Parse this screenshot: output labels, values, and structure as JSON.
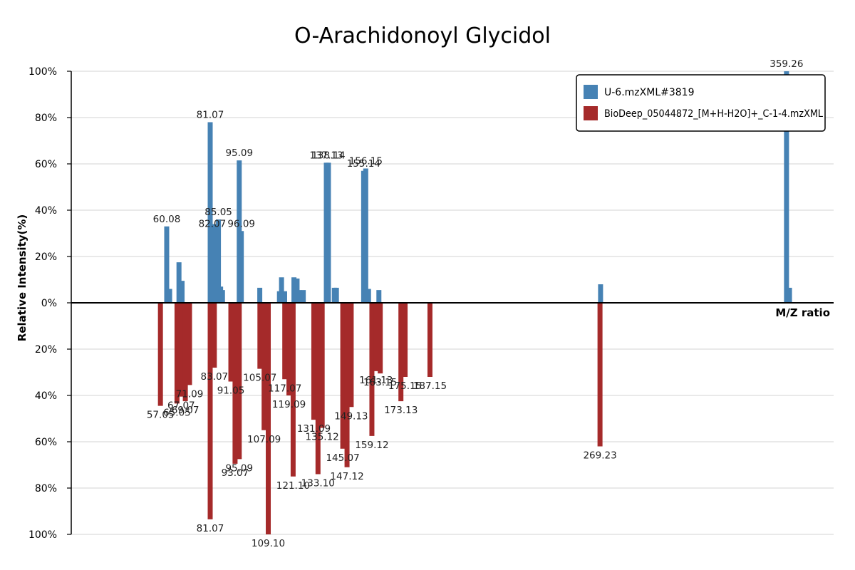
{
  "chart_data": {
    "type": "bar",
    "title": "O-Arachidonoyl Glycidol",
    "xlabel": "M/Z ratio",
    "ylabel": "Relative Intensity(%)",
    "ylim": [
      -100,
      100
    ],
    "xlim": [
      14,
      382
    ],
    "grid": true,
    "legend_position": "top-right",
    "y_ticks": [
      "100%",
      "80%",
      "60%",
      "40%",
      "20%",
      "0%",
      "20%",
      "40%",
      "60%",
      "80%",
      "100%"
    ],
    "colors": {
      "query": "#4682b4",
      "reference": "#a52a2a"
    },
    "series": [
      {
        "name": "U-6.mzXML#3819",
        "color": "#4682b4",
        "direction": "up",
        "peaks": [
          {
            "mz": 60.08,
            "intensity": 33,
            "label": "60.08"
          },
          {
            "mz": 61.5,
            "intensity": 6
          },
          {
            "mz": 66.0,
            "intensity": 17.5
          },
          {
            "mz": 67.5,
            "intensity": 9.5
          },
          {
            "mz": 81.07,
            "intensity": 78,
            "label": "81.07"
          },
          {
            "mz": 82.07,
            "intensity": 31,
            "label": "82.07"
          },
          {
            "mz": 83.2,
            "intensity": 34
          },
          {
            "mz": 84.2,
            "intensity": 18
          },
          {
            "mz": 85.05,
            "intensity": 36,
            "label": "85.05"
          },
          {
            "mz": 86.1,
            "intensity": 7
          },
          {
            "mz": 87.0,
            "intensity": 5.5
          },
          {
            "mz": 95.09,
            "intensity": 61.5,
            "label": "95.09"
          },
          {
            "mz": 96.09,
            "intensity": 31,
            "label": "96.09"
          },
          {
            "mz": 105.0,
            "intensity": 6.5
          },
          {
            "mz": 114.5,
            "intensity": 5
          },
          {
            "mz": 115.5,
            "intensity": 11
          },
          {
            "mz": 117.0,
            "intensity": 5
          },
          {
            "mz": 121.5,
            "intensity": 11
          },
          {
            "mz": 123.0,
            "intensity": 10.5
          },
          {
            "mz": 124.0,
            "intensity": 5.5
          },
          {
            "mz": 126.0,
            "intensity": 5.5
          },
          {
            "mz": 137.13,
            "intensity": 60.5,
            "label": "137.13"
          },
          {
            "mz": 138.14,
            "intensity": 60.5,
            "label": "138.14"
          },
          {
            "mz": 141.0,
            "intensity": 6.5
          },
          {
            "mz": 142.0,
            "intensity": 6.5
          },
          {
            "mz": 155.14,
            "intensity": 57,
            "label": "155.14"
          },
          {
            "mz": 156.15,
            "intensity": 58,
            "label": "156.15"
          },
          {
            "mz": 157.5,
            "intensity": 6
          },
          {
            "mz": 162.5,
            "intensity": 5.5
          },
          {
            "mz": 269.5,
            "intensity": 8
          },
          {
            "mz": 359.26,
            "intensity": 100,
            "label": "359.26"
          },
          {
            "mz": 360.7,
            "intensity": 6.5
          }
        ]
      },
      {
        "name": "BioDeep_05044872_[M+H-H2O]+_C-1-4.mzXML",
        "color": "#a52a2a",
        "direction": "down",
        "peaks": [
          {
            "mz": 57.05,
            "intensity": 44.5,
            "label": "57.05"
          },
          {
            "mz": 65.05,
            "intensity": 43.5,
            "label": "65.05"
          },
          {
            "mz": 67.07,
            "intensity": 40.5,
            "label": "67.07"
          },
          {
            "mz": 69.07,
            "intensity": 42.5,
            "label": "69.07"
          },
          {
            "mz": 71.09,
            "intensity": 35.5,
            "label": "71.09"
          },
          {
            "mz": 81.07,
            "intensity": 93.5,
            "label": "81.07"
          },
          {
            "mz": 83.07,
            "intensity": 28,
            "label": "83.07"
          },
          {
            "mz": 91.05,
            "intensity": 34,
            "label": "91.05"
          },
          {
            "mz": 93.07,
            "intensity": 69.5,
            "label": "93.07"
          },
          {
            "mz": 95.09,
            "intensity": 67.5,
            "label": "95.09"
          },
          {
            "mz": 105.07,
            "intensity": 28.5,
            "label": "105.07"
          },
          {
            "mz": 107.09,
            "intensity": 55,
            "label": "107.09"
          },
          {
            "mz": 109.1,
            "intensity": 100,
            "label": "109.10"
          },
          {
            "mz": 117.07,
            "intensity": 33,
            "label": "117.07"
          },
          {
            "mz": 119.09,
            "intensity": 40,
            "label": "119.09"
          },
          {
            "mz": 121.1,
            "intensity": 75,
            "label": "121.10"
          },
          {
            "mz": 131.09,
            "intensity": 50.5,
            "label": "131.09"
          },
          {
            "mz": 133.1,
            "intensity": 74,
            "label": "133.10"
          },
          {
            "mz": 135.12,
            "intensity": 54,
            "label": "135.12"
          },
          {
            "mz": 145.07,
            "intensity": 63,
            "label": "145.07"
          },
          {
            "mz": 147.12,
            "intensity": 71,
            "label": "147.12"
          },
          {
            "mz": 149.13,
            "intensity": 45,
            "label": "149.13"
          },
          {
            "mz": 159.12,
            "intensity": 57.5,
            "label": "159.12"
          },
          {
            "mz": 161.13,
            "intensity": 29.5,
            "label": "161.13"
          },
          {
            "mz": 163.15,
            "intensity": 30.5,
            "label": "163.15"
          },
          {
            "mz": 173.13,
            "intensity": 42.5,
            "label": "173.13"
          },
          {
            "mz": 175.15,
            "intensity": 32,
            "label": "175.15"
          },
          {
            "mz": 187.15,
            "intensity": 32,
            "label": "187.15"
          },
          {
            "mz": 269.23,
            "intensity": 62,
            "label": "269.23"
          }
        ]
      }
    ]
  }
}
